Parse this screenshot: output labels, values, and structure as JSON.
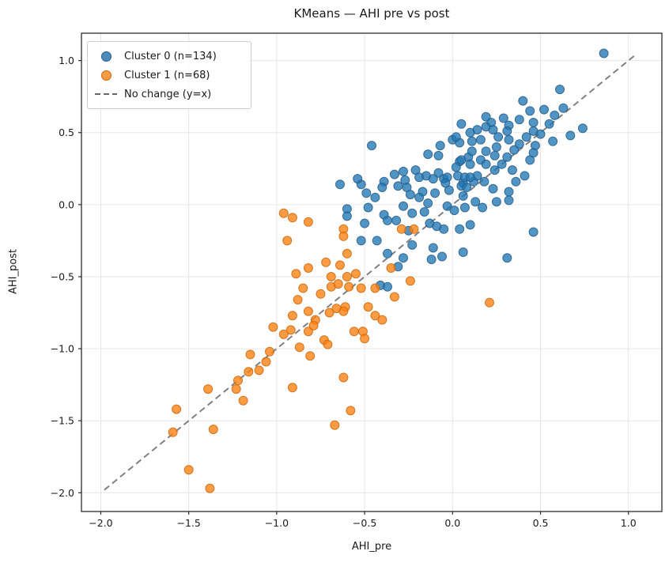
{
  "title": "KMeans — AHI pre vs post",
  "chart_data": {
    "type": "scatter",
    "title": "KMeans — AHI pre vs post",
    "xlabel": "AHI_pre",
    "ylabel": "AHI_post",
    "xlim": [
      -2.11,
      1.19
    ],
    "ylim": [
      -2.13,
      1.19
    ],
    "xticks": [
      -2.0,
      -1.5,
      -1.0,
      -0.5,
      0.0,
      0.5,
      1.0
    ],
    "yticks": [
      -2.0,
      -1.5,
      -1.0,
      -0.5,
      0.0,
      0.5,
      1.0
    ],
    "grid": true,
    "legend_position": "upper left",
    "series": [
      {
        "name": "Cluster 0 (n=134)",
        "type": "scatter",
        "color": "#1f77b4",
        "edge_color": "#2a5d87",
        "alpha": 0.78,
        "points": [
          [
            -0.46,
            0.41
          ],
          [
            -0.07,
            0.41
          ],
          [
            0.0,
            0.45
          ],
          [
            0.04,
            0.43
          ],
          [
            -0.14,
            0.35
          ],
          [
            -0.08,
            0.34
          ],
          [
            0.09,
            0.33
          ],
          [
            0.04,
            0.3
          ],
          [
            -0.28,
            0.23
          ],
          [
            -0.21,
            0.24
          ],
          [
            -0.19,
            0.19
          ],
          [
            -0.15,
            0.2
          ],
          [
            -0.08,
            0.22
          ],
          [
            -0.05,
            0.18
          ],
          [
            -0.03,
            0.19
          ],
          [
            0.03,
            0.2
          ],
          [
            0.06,
            0.15
          ],
          [
            0.07,
            0.19
          ],
          [
            -0.64,
            0.14
          ],
          [
            -0.52,
            0.14
          ],
          [
            -0.39,
            0.16
          ],
          [
            -0.4,
            0.12
          ],
          [
            -0.31,
            0.13
          ],
          [
            -0.26,
            0.12
          ],
          [
            -0.17,
            0.09
          ],
          [
            -0.1,
            0.08
          ],
          [
            -0.49,
            0.08
          ],
          [
            -0.27,
            0.17
          ],
          [
            -0.11,
            0.18
          ],
          [
            -0.04,
            0.15
          ],
          [
            0.05,
            0.13
          ],
          [
            0.08,
            0.12
          ],
          [
            0.12,
            0.16
          ],
          [
            0.14,
            0.2
          ],
          [
            0.02,
            0.47
          ],
          [
            0.11,
            0.37
          ],
          [
            0.05,
            0.31
          ],
          [
            0.1,
            0.28
          ],
          [
            -0.54,
            0.18
          ],
          [
            0.86,
            1.05
          ],
          [
            0.61,
            0.8
          ],
          [
            0.4,
            0.72
          ],
          [
            0.44,
            0.65
          ],
          [
            0.52,
            0.66
          ],
          [
            0.19,
            0.61
          ],
          [
            0.22,
            0.57
          ],
          [
            0.29,
            0.6
          ],
          [
            0.38,
            0.59
          ],
          [
            0.32,
            0.55
          ],
          [
            0.14,
            0.52
          ],
          [
            0.19,
            0.54
          ],
          [
            0.23,
            0.52
          ],
          [
            0.46,
            0.57
          ],
          [
            0.46,
            0.51
          ],
          [
            0.5,
            0.49
          ],
          [
            0.11,
            0.44
          ],
          [
            0.26,
            0.47
          ],
          [
            0.32,
            0.45
          ],
          [
            0.74,
            0.53
          ],
          [
            0.67,
            0.48
          ],
          [
            0.19,
            0.37
          ],
          [
            0.25,
            0.4
          ],
          [
            0.31,
            0.33
          ],
          [
            0.44,
            0.31
          ],
          [
            0.16,
            0.31
          ],
          [
            0.24,
            0.24
          ],
          [
            0.34,
            0.24
          ],
          [
            0.1,
            0.19
          ],
          [
            0.18,
            0.16
          ],
          [
            0.23,
            0.11
          ],
          [
            0.32,
            0.09
          ],
          [
            0.17,
            -0.02
          ],
          [
            0.25,
            0.02
          ],
          [
            0.32,
            0.03
          ],
          [
            0.46,
            -0.19
          ],
          [
            0.31,
            -0.37
          ],
          [
            -0.6,
            -0.03
          ],
          [
            -0.6,
            -0.08
          ],
          [
            -0.48,
            -0.02
          ],
          [
            -0.5,
            -0.13
          ],
          [
            -0.52,
            -0.25
          ],
          [
            -0.43,
            -0.25
          ],
          [
            -0.39,
            -0.07
          ],
          [
            -0.37,
            -0.11
          ],
          [
            -0.32,
            -0.11
          ],
          [
            -0.28,
            -0.01
          ],
          [
            -0.23,
            -0.06
          ],
          [
            -0.19,
            0.05
          ],
          [
            -0.14,
            0.01
          ],
          [
            -0.24,
            0.07
          ],
          [
            -0.37,
            -0.34
          ],
          [
            -0.31,
            -0.43
          ],
          [
            -0.28,
            -0.37
          ],
          [
            -0.23,
            -0.28
          ],
          [
            -0.13,
            -0.13
          ],
          [
            -0.09,
            -0.15
          ],
          [
            -0.05,
            -0.17
          ],
          [
            -0.03,
            -0.01
          ],
          [
            0.01,
            -0.04
          ],
          [
            0.07,
            -0.02
          ],
          [
            -0.11,
            -0.3
          ],
          [
            -0.12,
            -0.38
          ],
          [
            -0.06,
            -0.36
          ],
          [
            0.04,
            -0.17
          ],
          [
            0.1,
            -0.14
          ],
          [
            0.06,
            -0.33
          ],
          [
            -0.41,
            -0.56
          ],
          [
            -0.37,
            -0.57
          ],
          [
            0.38,
            0.42
          ],
          [
            0.42,
            0.47
          ],
          [
            0.35,
            0.38
          ],
          [
            0.28,
            0.28
          ],
          [
            0.19,
            0.28
          ],
          [
            0.36,
            0.16
          ],
          [
            0.41,
            0.2
          ],
          [
            0.47,
            0.41
          ],
          [
            0.55,
            0.56
          ],
          [
            0.58,
            0.62
          ],
          [
            0.63,
            0.67
          ],
          [
            0.57,
            0.44
          ],
          [
            0.13,
            0.02
          ],
          [
            0.06,
            0.06
          ],
          [
            -0.02,
            0.1
          ],
          [
            -0.33,
            0.21
          ],
          [
            -0.44,
            0.05
          ],
          [
            -0.25,
            -0.18
          ],
          [
            -0.16,
            -0.05
          ],
          [
            0.02,
            0.26
          ],
          [
            0.16,
            0.45
          ],
          [
            0.24,
            0.34
          ],
          [
            0.31,
            0.51
          ],
          [
            0.1,
            0.5
          ],
          [
            0.05,
            0.56
          ],
          [
            0.46,
            0.36
          ]
        ]
      },
      {
        "name": "Cluster 1 (n=68)",
        "type": "scatter",
        "color": "#ff7f0e",
        "edge_color": "#c66a10",
        "alpha": 0.78,
        "points": [
          [
            -0.96,
            -0.06
          ],
          [
            -0.91,
            -0.09
          ],
          [
            -0.82,
            -0.12
          ],
          [
            -0.94,
            -0.25
          ],
          [
            -0.62,
            -0.17
          ],
          [
            -0.62,
            -0.22
          ],
          [
            -0.29,
            -0.17
          ],
          [
            -0.22,
            -0.17
          ],
          [
            -0.6,
            -0.34
          ],
          [
            -0.64,
            -0.42
          ],
          [
            -0.82,
            -0.44
          ],
          [
            -0.89,
            -0.48
          ],
          [
            -0.85,
            -0.58
          ],
          [
            -0.69,
            -0.5
          ],
          [
            -0.69,
            -0.57
          ],
          [
            -0.65,
            -0.55
          ],
          [
            -0.6,
            -0.5
          ],
          [
            -0.59,
            -0.57
          ],
          [
            -0.52,
            -0.58
          ],
          [
            -0.24,
            -0.53
          ],
          [
            -0.61,
            -0.71
          ],
          [
            -0.66,
            -0.72
          ],
          [
            -0.62,
            -0.74
          ],
          [
            -0.48,
            -0.71
          ],
          [
            -0.33,
            -0.64
          ],
          [
            -0.91,
            -0.77
          ],
          [
            -0.82,
            -0.74
          ],
          [
            -0.78,
            -0.8
          ],
          [
            -0.92,
            -0.87
          ],
          [
            -0.82,
            -0.88
          ],
          [
            -0.79,
            -0.84
          ],
          [
            -0.44,
            -0.77
          ],
          [
            -0.4,
            -0.8
          ],
          [
            -0.56,
            -0.88
          ],
          [
            -0.51,
            -0.88
          ],
          [
            -0.5,
            -0.93
          ],
          [
            -0.73,
            -0.94
          ],
          [
            -0.71,
            -0.97
          ],
          [
            -0.87,
            -0.99
          ],
          [
            -0.81,
            -1.05
          ],
          [
            -1.15,
            -1.04
          ],
          [
            -1.04,
            -1.02
          ],
          [
            -1.57,
            -1.42
          ],
          [
            -1.39,
            -1.28
          ],
          [
            -1.22,
            -1.22
          ],
          [
            -1.23,
            -1.28
          ],
          [
            -1.19,
            -1.36
          ],
          [
            -1.16,
            -1.16
          ],
          [
            -1.06,
            -1.09
          ],
          [
            -1.59,
            -1.58
          ],
          [
            -1.36,
            -1.56
          ],
          [
            -1.5,
            -1.84
          ],
          [
            -1.38,
            -1.97
          ],
          [
            -0.62,
            -1.2
          ],
          [
            -0.91,
            -1.27
          ],
          [
            -0.58,
            -1.43
          ],
          [
            -0.67,
            -1.53
          ],
          [
            0.21,
            -0.68
          ],
          [
            -0.75,
            -0.62
          ],
          [
            -0.7,
            -0.75
          ],
          [
            -0.88,
            -0.66
          ],
          [
            -0.96,
            -0.9
          ],
          [
            -1.1,
            -1.15
          ],
          [
            -0.55,
            -0.48
          ],
          [
            -0.44,
            -0.58
          ],
          [
            -0.72,
            -0.4
          ],
          [
            -1.02,
            -0.85
          ],
          [
            -0.35,
            -0.44
          ]
        ]
      },
      {
        "name": "No change (y=x)",
        "type": "line",
        "style": "dashed",
        "color": "#808080",
        "points": [
          [
            -1.98,
            -1.98
          ],
          [
            1.04,
            1.04
          ]
        ]
      }
    ]
  },
  "colors": {
    "grid": "#e6e6e6",
    "frame": "#2b2b2b",
    "text": "#1a1a1a",
    "legend_border": "#cccccc"
  }
}
